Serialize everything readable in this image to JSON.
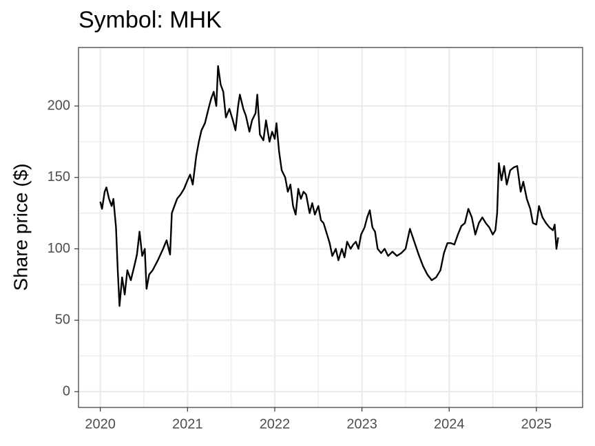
{
  "chart_data": {
    "type": "line",
    "title": "Symbol: MHK",
    "y_label": "Share price ($)",
    "x": [
      2020.0,
      2020.02,
      2020.05,
      2020.07,
      2020.1,
      2020.13,
      2020.15,
      2020.18,
      2020.2,
      2020.22,
      2020.25,
      2020.28,
      2020.31,
      2020.35,
      2020.39,
      2020.42,
      2020.45,
      2020.48,
      2020.51,
      2020.53,
      2020.56,
      2020.6,
      2020.66,
      2020.72,
      2020.76,
      2020.8,
      2020.82,
      2020.85,
      2020.88,
      2020.92,
      2020.96,
      2021.0,
      2021.03,
      2021.06,
      2021.1,
      2021.13,
      2021.16,
      2021.2,
      2021.24,
      2021.27,
      2021.3,
      2021.33,
      2021.35,
      2021.38,
      2021.41,
      2021.44,
      2021.48,
      2021.52,
      2021.55,
      2021.58,
      2021.6,
      2021.64,
      2021.67,
      2021.71,
      2021.74,
      2021.78,
      2021.8,
      2021.83,
      2021.87,
      2021.9,
      2021.94,
      2021.97,
      2022.0,
      2022.02,
      2022.05,
      2022.08,
      2022.12,
      2022.15,
      2022.18,
      2022.21,
      2022.24,
      2022.27,
      2022.3,
      2022.33,
      2022.36,
      2022.4,
      2022.43,
      2022.46,
      2022.5,
      2022.53,
      2022.56,
      2022.6,
      2022.63,
      2022.66,
      2022.7,
      2022.73,
      2022.77,
      2022.8,
      2022.83,
      2022.87,
      2022.9,
      2022.93,
      2022.96,
      2022.99,
      2023.03,
      2023.06,
      2023.09,
      2023.12,
      2023.15,
      2023.18,
      2023.22,
      2023.26,
      2023.3,
      2023.35,
      2023.4,
      2023.45,
      2023.5,
      2023.55,
      2023.6,
      2023.65,
      2023.7,
      2023.75,
      2023.8,
      2023.85,
      2023.9,
      2023.94,
      2023.98,
      2024.02,
      2024.06,
      2024.1,
      2024.14,
      2024.18,
      2024.22,
      2024.26,
      2024.3,
      2024.34,
      2024.38,
      2024.42,
      2024.46,
      2024.5,
      2024.53,
      2024.55,
      2024.57,
      2024.6,
      2024.63,
      2024.66,
      2024.7,
      2024.74,
      2024.78,
      2024.82,
      2024.85,
      2024.89,
      2024.93,
      2024.96,
      2025.0,
      2025.03,
      2025.07,
      2025.11,
      2025.15,
      2025.19,
      2025.21,
      2025.23,
      2025.25
    ],
    "series": [
      {
        "color": "#000000",
        "values": [
          133,
          128,
          140,
          143,
          135,
          130,
          135,
          115,
          85,
          60,
          80,
          68,
          85,
          78,
          88,
          96,
          112,
          95,
          100,
          72,
          82,
          85,
          92,
          100,
          106,
          96,
          125,
          130,
          135,
          138,
          142,
          148,
          152,
          145,
          165,
          175,
          183,
          188,
          198,
          205,
          210,
          200,
          228,
          215,
          210,
          192,
          198,
          190,
          183,
          200,
          208,
          198,
          193,
          182,
          190,
          195,
          208,
          180,
          176,
          190,
          175,
          182,
          177,
          188,
          168,
          155,
          150,
          140,
          145,
          130,
          124,
          142,
          135,
          140,
          138,
          125,
          132,
          124,
          130,
          120,
          118,
          110,
          104,
          95,
          100,
          92,
          100,
          94,
          105,
          100,
          103,
          105,
          100,
          110,
          115,
          122,
          127,
          115,
          112,
          100,
          97,
          100,
          95,
          98,
          95,
          97,
          100,
          114,
          105,
          96,
          88,
          82,
          78,
          80,
          85,
          97,
          104,
          104,
          103,
          110,
          116,
          118,
          128,
          122,
          110,
          118,
          122,
          118,
          115,
          110,
          113,
          125,
          160,
          148,
          158,
          145,
          155,
          157,
          158,
          140,
          147,
          135,
          128,
          118,
          117,
          130,
          122,
          118,
          115,
          113,
          117,
          100,
          108
        ]
      }
    ],
    "xlim": [
      2019.75,
      2025.53
    ],
    "xticks": [
      2020,
      2021,
      2022,
      2023,
      2024,
      2025
    ],
    "ylim": [
      -11.1,
      241
    ],
    "yticks": [
      0,
      50,
      100,
      150,
      200
    ],
    "grid": true
  }
}
